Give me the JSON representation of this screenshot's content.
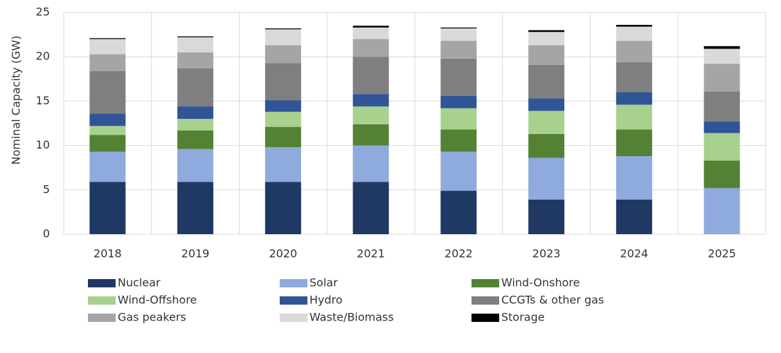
{
  "chart_data": {
    "type": "stacked_bar",
    "y_label": "Nominal Capacity (GW)",
    "categories": [
      "2018",
      "2019",
      "2020",
      "2021",
      "2022",
      "2023",
      "2024",
      "2025"
    ],
    "series": [
      {
        "name": "Nuclear",
        "color": "#203864",
        "values": [
          5.9,
          5.9,
          5.9,
          5.9,
          4.9,
          3.9,
          3.9,
          0
        ]
      },
      {
        "name": "Solar",
        "color": "#8faadc",
        "values": [
          3.4,
          3.7,
          3.9,
          4.1,
          4.4,
          4.7,
          4.9,
          5.2
        ]
      },
      {
        "name": "Wind-Onshore",
        "color": "#548235",
        "values": [
          1.9,
          2.1,
          2.3,
          2.4,
          2.5,
          2.7,
          3.0,
          3.1
        ]
      },
      {
        "name": "Wind-Offshore",
        "color": "#a9d18e",
        "values": [
          1.0,
          1.3,
          1.7,
          2.0,
          2.4,
          2.6,
          2.8,
          3.1
        ]
      },
      {
        "name": "Hydro",
        "color": "#2f5597",
        "values": [
          1.4,
          1.4,
          1.3,
          1.4,
          1.4,
          1.4,
          1.4,
          1.3
        ]
      },
      {
        "name": "CCGTs & other gas",
        "color": "#7f7f7f",
        "values": [
          4.8,
          4.3,
          4.2,
          4.2,
          4.2,
          3.8,
          3.4,
          3.4
        ]
      },
      {
        "name": "Gas peakers",
        "color": "#a5a5a5",
        "values": [
          1.9,
          1.8,
          2.0,
          2.0,
          2.0,
          2.2,
          2.4,
          3.1
        ]
      },
      {
        "name": "Waste/Biomass",
        "color": "#d9d9d9",
        "values": [
          1.7,
          1.7,
          1.8,
          1.3,
          1.4,
          1.5,
          1.6,
          1.7
        ]
      },
      {
        "name": "Storage",
        "color": "#000000",
        "values": [
          0.1,
          0.1,
          0.1,
          0.2,
          0.1,
          0.2,
          0.2,
          0.3
        ]
      }
    ],
    "ylim": [
      0,
      25
    ],
    "yticks": [
      0,
      5,
      10,
      15,
      20,
      25
    ],
    "grid": true
  }
}
